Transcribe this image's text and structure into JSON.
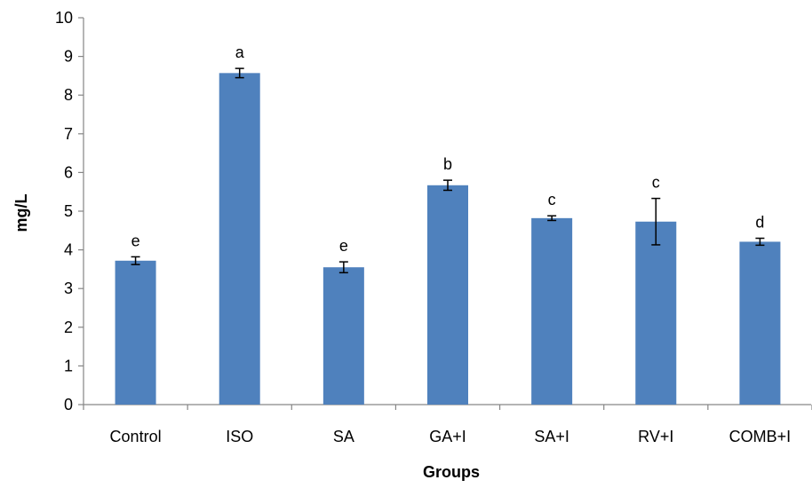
{
  "chart_data": {
    "type": "bar",
    "title": "",
    "xlabel": "Groups",
    "ylabel": "mg/L",
    "ylim": [
      0,
      10
    ],
    "yticks": [
      0,
      1,
      2,
      3,
      4,
      5,
      6,
      7,
      8,
      9,
      10
    ],
    "grid": false,
    "legend": "none",
    "bar_color": "#4F81BD",
    "categories": [
      "Control",
      "ISO",
      "SA",
      "GA+I",
      "SA+I",
      "RV+I",
      "COMB+I"
    ],
    "values": [
      3.72,
      8.57,
      3.55,
      5.67,
      4.82,
      4.73,
      4.21
    ],
    "errors": [
      0.1,
      0.12,
      0.14,
      0.13,
      0.06,
      0.6,
      0.09
    ],
    "significance_labels": [
      "e",
      "a",
      "e",
      "b",
      "c",
      "c",
      "d"
    ]
  }
}
